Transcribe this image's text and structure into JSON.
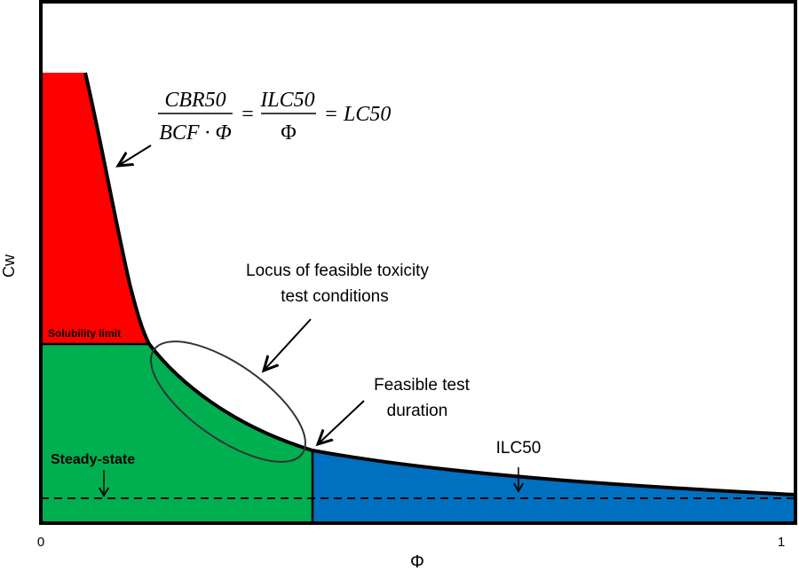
{
  "axes": {
    "x_label": "Φ",
    "y_label": "Cw",
    "x_tick_min": "0",
    "x_tick_max": "1"
  },
  "equation": {
    "frac1_num": "CBR50",
    "frac1_den": "BCF · Φ",
    "equals1": "=",
    "frac2_num": "ILC50",
    "frac2_den": "Φ",
    "equals2": "=",
    "rhs": "LC50"
  },
  "labels": {
    "solubility": "Solubility limit",
    "steady_state": "Steady-state",
    "locus_line1": "Locus of feasible toxicity",
    "locus_line2": "test conditions",
    "duration_line1": "Feasible test",
    "duration_line2": "duration",
    "ilc50": "ILC50"
  },
  "colors": {
    "red_region": "#ff0000",
    "green_region": "#00b050",
    "blue_region": "#0070c0",
    "outline": "#000000"
  }
}
